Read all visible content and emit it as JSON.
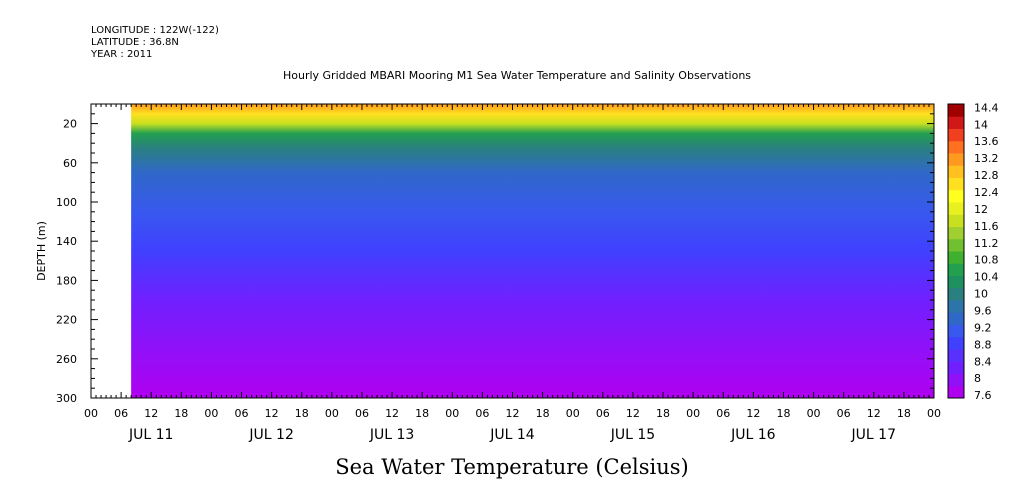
{
  "header": {
    "longitude": "LONGITUDE : 122W(-122)",
    "latitude": "LATITUDE : 36.8N",
    "year": "YEAR : 2011"
  },
  "title": "Hourly Gridded MBARI Mooring M1 Sea Water Temperature and Salinity Observations",
  "bottom_title": "Sea Water Temperature (Celsius)",
  "chart_data": {
    "type": "heatmap",
    "title": "Hourly Gridded MBARI Mooring M1 Sea Water Temperature and Salinity Observations",
    "ylabel": "DEPTH (m)",
    "y_reversed": true,
    "ylim": [
      300,
      0
    ],
    "yticks": [
      20,
      60,
      100,
      140,
      180,
      220,
      260,
      300
    ],
    "xlim_hours": [
      0,
      168
    ],
    "hour_ticks": [
      "00",
      "06",
      "12",
      "18",
      "00",
      "06",
      "12",
      "18",
      "00",
      "06",
      "12",
      "18",
      "00",
      "06",
      "12",
      "18",
      "00",
      "06",
      "12",
      "18",
      "00",
      "06",
      "12",
      "18",
      "00",
      "06",
      "12",
      "18",
      "00"
    ],
    "day_labels": [
      "JUL 11",
      "JUL 12",
      "JUL 13",
      "JUL 14",
      "JUL 15",
      "JUL 16",
      "JUL 17"
    ],
    "data_start_hour": 8,
    "colorbar": {
      "labels": [
        "14.4",
        "14",
        "13.6",
        "13.2",
        "12.8",
        "12.4",
        "12",
        "11.6",
        "11.2",
        "10.8",
        "10.4",
        "10",
        "9.6",
        "9.2",
        "8.8",
        "8.4",
        "8",
        "7.6"
      ],
      "min": 7.6,
      "max": 14.6,
      "colors": [
        "#b000f0",
        "#9010f8",
        "#7020ff",
        "#5a30ff",
        "#4040ff",
        "#3858ee",
        "#3068c8",
        "#2c74aa",
        "#2a8080",
        "#1f9060",
        "#22a050",
        "#40b030",
        "#70c030",
        "#a0d030",
        "#c8e020",
        "#e8f020",
        "#ffff20",
        "#ffe020",
        "#ffc020",
        "#ff9a20",
        "#ff7020",
        "#f04020",
        "#d01818",
        "#a00000"
      ]
    },
    "depth_profile": [
      {
        "depth": 0,
        "temp": 13.2
      },
      {
        "depth": 10,
        "temp": 12.8
      },
      {
        "depth": 20,
        "temp": 11.9
      },
      {
        "depth": 30,
        "temp": 10.8
      },
      {
        "depth": 45,
        "temp": 10.0
      },
      {
        "depth": 70,
        "temp": 9.6
      },
      {
        "depth": 110,
        "temp": 9.2
      },
      {
        "depth": 150,
        "temp": 8.8
      },
      {
        "depth": 200,
        "temp": 8.4
      },
      {
        "depth": 250,
        "temp": 8.1
      },
      {
        "depth": 300,
        "temp": 7.8
      }
    ]
  }
}
